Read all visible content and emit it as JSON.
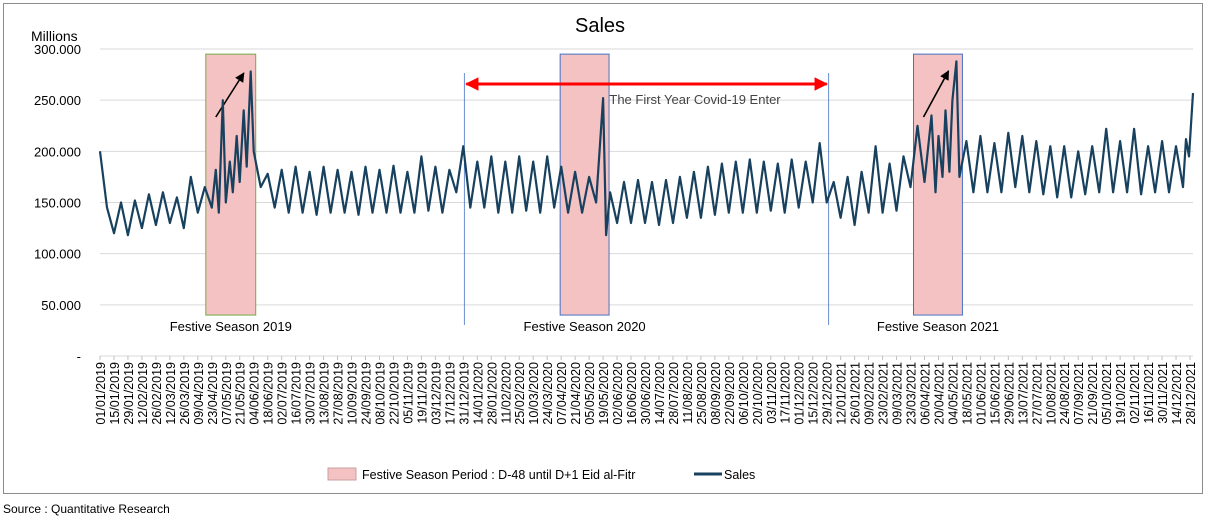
{
  "chart_data": {
    "type": "line",
    "title": "Sales",
    "y_unit_label": "Millions",
    "ylim": [
      0,
      300
    ],
    "y_ticks": [
      {
        "value": 0,
        "label": "-"
      },
      {
        "value": 50,
        "label": "50.000"
      },
      {
        "value": 100,
        "label": "100.000"
      },
      {
        "value": 150,
        "label": "150.000"
      },
      {
        "value": 200,
        "label": "200.000"
      },
      {
        "value": 250,
        "label": "250.000"
      },
      {
        "value": 300,
        "label": "300.000"
      }
    ],
    "x_range": [
      "01/01/2019",
      "31/12/2021"
    ],
    "x_tick_labels": [
      "01/01/2019",
      "15/01/2019",
      "29/01/2019",
      "12/02/2019",
      "26/02/2019",
      "12/03/2019",
      "26/03/2019",
      "09/04/2019",
      "23/04/2019",
      "07/05/2019",
      "21/05/2019",
      "04/06/2019",
      "18/06/2019",
      "02/07/2019",
      "16/07/2019",
      "30/07/2019",
      "13/08/2019",
      "27/08/2019",
      "10/09/2019",
      "24/09/2019",
      "08/10/2019",
      "22/10/2019",
      "05/11/2019",
      "19/11/2019",
      "03/12/2019",
      "17/12/2019",
      "31/12/2019",
      "14/01/2020",
      "28/01/2020",
      "11/02/2020",
      "25/02/2020",
      "10/03/2020",
      "24/03/2020",
      "07/04/2020",
      "21/04/2020",
      "05/05/2020",
      "19/05/2020",
      "02/06/2020",
      "16/06/2020",
      "30/06/2020",
      "14/07/2020",
      "28/07/2020",
      "11/08/2020",
      "25/08/2020",
      "08/09/2020",
      "22/09/2020",
      "06/10/2020",
      "20/10/2020",
      "03/11/2020",
      "17/11/2020",
      "01/12/2020",
      "15/12/2020",
      "29/12/2020",
      "12/01/2021",
      "26/01/2021",
      "09/02/2021",
      "23/02/2021",
      "09/03/2021",
      "23/03/2021",
      "06/04/2021",
      "20/04/2021",
      "04/05/2021",
      "18/05/2021",
      "01/06/2021",
      "15/06/2021",
      "29/06/2021",
      "13/07/2021",
      "27/07/2021",
      "10/08/2021",
      "24/08/2021",
      "07/09/2021",
      "21/09/2021",
      "05/10/2021",
      "19/10/2021",
      "02/11/2021",
      "16/11/2021",
      "30/11/2021",
      "14/12/2021",
      "28/12/2021"
    ],
    "series": [
      {
        "name": "Sales",
        "color": "#17415e",
        "points": [
          [
            "01/01/2019",
            200
          ],
          [
            "08/01/2019",
            145
          ],
          [
            "15/01/2019",
            120
          ],
          [
            "22/01/2019",
            150
          ],
          [
            "29/01/2019",
            118
          ],
          [
            "05/02/2019",
            152
          ],
          [
            "12/02/2019",
            125
          ],
          [
            "19/02/2019",
            158
          ],
          [
            "26/02/2019",
            128
          ],
          [
            "05/03/2019",
            160
          ],
          [
            "12/03/2019",
            130
          ],
          [
            "19/03/2019",
            155
          ],
          [
            "26/03/2019",
            125
          ],
          [
            "02/04/2019",
            175
          ],
          [
            "09/04/2019",
            140
          ],
          [
            "16/04/2019",
            165
          ],
          [
            "23/04/2019",
            145
          ],
          [
            "27/04/2019",
            182
          ],
          [
            "30/04/2019",
            140
          ],
          [
            "04/05/2019",
            250
          ],
          [
            "07/05/2019",
            150
          ],
          [
            "11/05/2019",
            190
          ],
          [
            "14/05/2019",
            160
          ],
          [
            "18/05/2019",
            215
          ],
          [
            "21/05/2019",
            170
          ],
          [
            "25/05/2019",
            240
          ],
          [
            "28/05/2019",
            185
          ],
          [
            "01/06/2019",
            278
          ],
          [
            "04/06/2019",
            200
          ],
          [
            "11/06/2019",
            165
          ],
          [
            "18/06/2019",
            178
          ],
          [
            "25/06/2019",
            145
          ],
          [
            "02/07/2019",
            182
          ],
          [
            "09/07/2019",
            140
          ],
          [
            "16/07/2019",
            185
          ],
          [
            "23/07/2019",
            140
          ],
          [
            "30/07/2019",
            180
          ],
          [
            "06/08/2019",
            138
          ],
          [
            "13/08/2019",
            185
          ],
          [
            "20/08/2019",
            140
          ],
          [
            "27/08/2019",
            182
          ],
          [
            "03/09/2019",
            140
          ],
          [
            "10/09/2019",
            180
          ],
          [
            "17/09/2019",
            138
          ],
          [
            "24/09/2019",
            185
          ],
          [
            "01/10/2019",
            140
          ],
          [
            "08/10/2019",
            182
          ],
          [
            "15/10/2019",
            140
          ],
          [
            "22/10/2019",
            186
          ],
          [
            "29/10/2019",
            140
          ],
          [
            "05/11/2019",
            180
          ],
          [
            "12/11/2019",
            140
          ],
          [
            "19/11/2019",
            195
          ],
          [
            "26/11/2019",
            142
          ],
          [
            "03/12/2019",
            185
          ],
          [
            "10/12/2019",
            140
          ],
          [
            "17/12/2019",
            182
          ],
          [
            "24/12/2019",
            160
          ],
          [
            "31/12/2019",
            205
          ],
          [
            "07/01/2020",
            145
          ],
          [
            "14/01/2020",
            190
          ],
          [
            "21/01/2020",
            145
          ],
          [
            "28/01/2020",
            195
          ],
          [
            "04/02/2020",
            140
          ],
          [
            "11/02/2020",
            190
          ],
          [
            "18/02/2020",
            140
          ],
          [
            "25/02/2020",
            195
          ],
          [
            "03/03/2020",
            142
          ],
          [
            "10/03/2020",
            190
          ],
          [
            "17/03/2020",
            140
          ],
          [
            "24/03/2020",
            195
          ],
          [
            "31/03/2020",
            145
          ],
          [
            "07/04/2020",
            185
          ],
          [
            "14/04/2020",
            140
          ],
          [
            "21/04/2020",
            180
          ],
          [
            "28/04/2020",
            140
          ],
          [
            "05/05/2020",
            175
          ],
          [
            "12/05/2020",
            150
          ],
          [
            "19/05/2020",
            252
          ],
          [
            "22/05/2020",
            118
          ],
          [
            "26/05/2020",
            160
          ],
          [
            "02/06/2020",
            130
          ],
          [
            "09/06/2020",
            170
          ],
          [
            "16/06/2020",
            130
          ],
          [
            "23/06/2020",
            172
          ],
          [
            "30/06/2020",
            130
          ],
          [
            "07/07/2020",
            170
          ],
          [
            "14/07/2020",
            128
          ],
          [
            "21/07/2020",
            172
          ],
          [
            "28/07/2020",
            130
          ],
          [
            "04/08/2020",
            175
          ],
          [
            "11/08/2020",
            135
          ],
          [
            "18/08/2020",
            180
          ],
          [
            "25/08/2020",
            135
          ],
          [
            "01/09/2020",
            185
          ],
          [
            "08/09/2020",
            138
          ],
          [
            "15/09/2020",
            188
          ],
          [
            "22/09/2020",
            140
          ],
          [
            "29/09/2020",
            190
          ],
          [
            "06/10/2020",
            140
          ],
          [
            "13/10/2020",
            192
          ],
          [
            "20/10/2020",
            140
          ],
          [
            "27/10/2020",
            190
          ],
          [
            "03/11/2020",
            142
          ],
          [
            "10/11/2020",
            188
          ],
          [
            "17/11/2020",
            140
          ],
          [
            "24/11/2020",
            192
          ],
          [
            "01/12/2020",
            145
          ],
          [
            "08/12/2020",
            190
          ],
          [
            "15/12/2020",
            150
          ],
          [
            "22/12/2020",
            208
          ],
          [
            "29/12/2020",
            150
          ],
          [
            "05/01/2021",
            170
          ],
          [
            "12/01/2021",
            135
          ],
          [
            "19/01/2021",
            175
          ],
          [
            "26/01/2021",
            128
          ],
          [
            "02/02/2021",
            180
          ],
          [
            "09/02/2021",
            140
          ],
          [
            "16/02/2021",
            205
          ],
          [
            "23/02/2021",
            140
          ],
          [
            "02/03/2021",
            188
          ],
          [
            "09/03/2021",
            142
          ],
          [
            "16/03/2021",
            195
          ],
          [
            "23/03/2021",
            165
          ],
          [
            "30/03/2021",
            225
          ],
          [
            "06/04/2021",
            170
          ],
          [
            "13/04/2021",
            235
          ],
          [
            "17/04/2021",
            160
          ],
          [
            "20/04/2021",
            215
          ],
          [
            "24/04/2021",
            175
          ],
          [
            "27/04/2021",
            240
          ],
          [
            "01/05/2021",
            180
          ],
          [
            "04/05/2021",
            250
          ],
          [
            "08/05/2021",
            288
          ],
          [
            "11/05/2021",
            175
          ],
          [
            "18/05/2021",
            210
          ],
          [
            "25/05/2021",
            160
          ],
          [
            "01/06/2021",
            215
          ],
          [
            "08/06/2021",
            160
          ],
          [
            "15/06/2021",
            208
          ],
          [
            "22/06/2021",
            160
          ],
          [
            "29/06/2021",
            218
          ],
          [
            "06/07/2021",
            165
          ],
          [
            "13/07/2021",
            215
          ],
          [
            "20/07/2021",
            160
          ],
          [
            "27/07/2021",
            210
          ],
          [
            "03/08/2021",
            158
          ],
          [
            "10/08/2021",
            205
          ],
          [
            "17/08/2021",
            155
          ],
          [
            "24/08/2021",
            205
          ],
          [
            "31/08/2021",
            155
          ],
          [
            "07/09/2021",
            200
          ],
          [
            "14/09/2021",
            158
          ],
          [
            "21/09/2021",
            205
          ],
          [
            "28/09/2021",
            160
          ],
          [
            "05/10/2021",
            222
          ],
          [
            "12/10/2021",
            160
          ],
          [
            "19/10/2021",
            210
          ],
          [
            "26/10/2021",
            160
          ],
          [
            "02/11/2021",
            222
          ],
          [
            "09/11/2021",
            158
          ],
          [
            "16/11/2021",
            205
          ],
          [
            "23/11/2021",
            160
          ],
          [
            "30/11/2021",
            210
          ],
          [
            "07/12/2021",
            160
          ],
          [
            "14/12/2021",
            205
          ],
          [
            "21/12/2021",
            165
          ],
          [
            "24/12/2021",
            212
          ],
          [
            "27/12/2021",
            195
          ],
          [
            "31/12/2021",
            257
          ]
        ]
      }
    ],
    "festive_seasons": [
      {
        "label": "Festive Season 2019",
        "start": "17/04/2019",
        "end": "06/06/2019",
        "border": "#70ad47"
      },
      {
        "label": "Festive Season 2020",
        "start": "06/04/2020",
        "end": "25/05/2020",
        "border": "#4472c4"
      },
      {
        "label": "Festive Season 2021",
        "start": "26/03/2021",
        "end": "14/05/2021",
        "border": "#4472c4"
      }
    ],
    "festive_fill": "#f4c2c2",
    "covid_annotation": {
      "text": "The First Year Covid-19 Enter",
      "start": "01/01/2020",
      "end": "31/12/2020",
      "arrow_color": "#ff0000",
      "marker_color": "#4472c4"
    },
    "legend": [
      {
        "type": "fill",
        "label": "Festive Season Period : D-48 until D+1 Eid al-Fitr"
      },
      {
        "type": "line",
        "label": "Sales"
      }
    ],
    "legend_position": "bottom",
    "grid": "horizontal"
  },
  "source": "Source : Quantitative Research"
}
